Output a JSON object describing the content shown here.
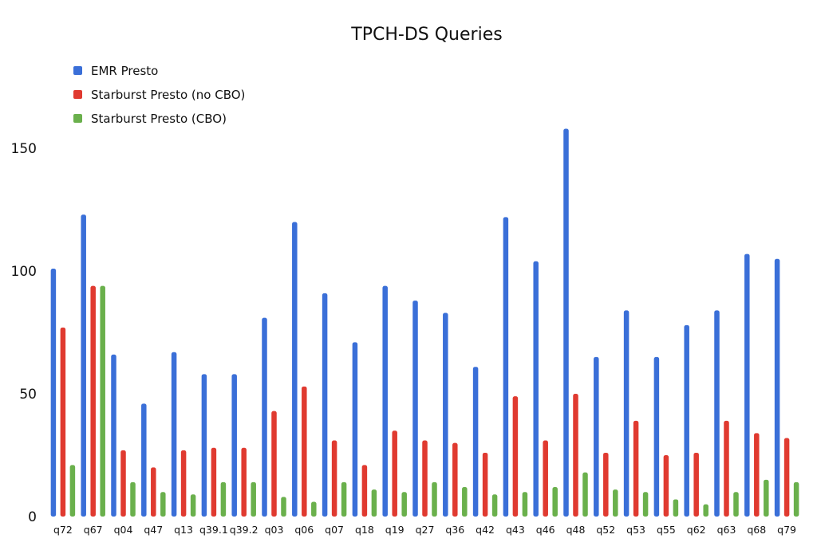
{
  "chart_data": {
    "type": "bar",
    "title": "TPCH-DS Queries",
    "xlabel": "",
    "ylabel": "",
    "ylim": [
      0,
      165
    ],
    "yticks": [
      0,
      50,
      100,
      150
    ],
    "legend_position": "top-left",
    "categories": [
      "q72",
      "q67",
      "q04",
      "q47",
      "q13",
      "q39.1",
      "q39.2",
      "q03",
      "q06",
      "q07",
      "q18",
      "q19",
      "q27",
      "q36",
      "q42",
      "q43",
      "q46",
      "q48",
      "q52",
      "q53",
      "q55",
      "q62",
      "q63",
      "q68",
      "q79"
    ],
    "series": [
      {
        "name": "EMR Presto",
        "color": "#3a6fd8",
        "values": [
          101,
          123,
          66,
          46,
          67,
          58,
          58,
          81,
          120,
          91,
          71,
          94,
          88,
          83,
          61,
          122,
          104,
          158,
          65,
          84,
          65,
          78,
          84,
          107,
          105
        ]
      },
      {
        "name": "Starburst Presto (no CBO)",
        "color": "#e03a30",
        "values": [
          77,
          94,
          27,
          20,
          27,
          28,
          28,
          43,
          53,
          31,
          21,
          35,
          31,
          30,
          26,
          49,
          31,
          50,
          26,
          39,
          25,
          26,
          39,
          34,
          32
        ]
      },
      {
        "name": "Starburst Presto (CBO)",
        "color": "#6ab04c",
        "values": [
          21,
          94,
          14,
          10,
          9,
          14,
          14,
          8,
          6,
          14,
          11,
          10,
          14,
          12,
          9,
          10,
          12,
          18,
          11,
          10,
          7,
          5,
          10,
          15,
          14
        ]
      }
    ]
  }
}
